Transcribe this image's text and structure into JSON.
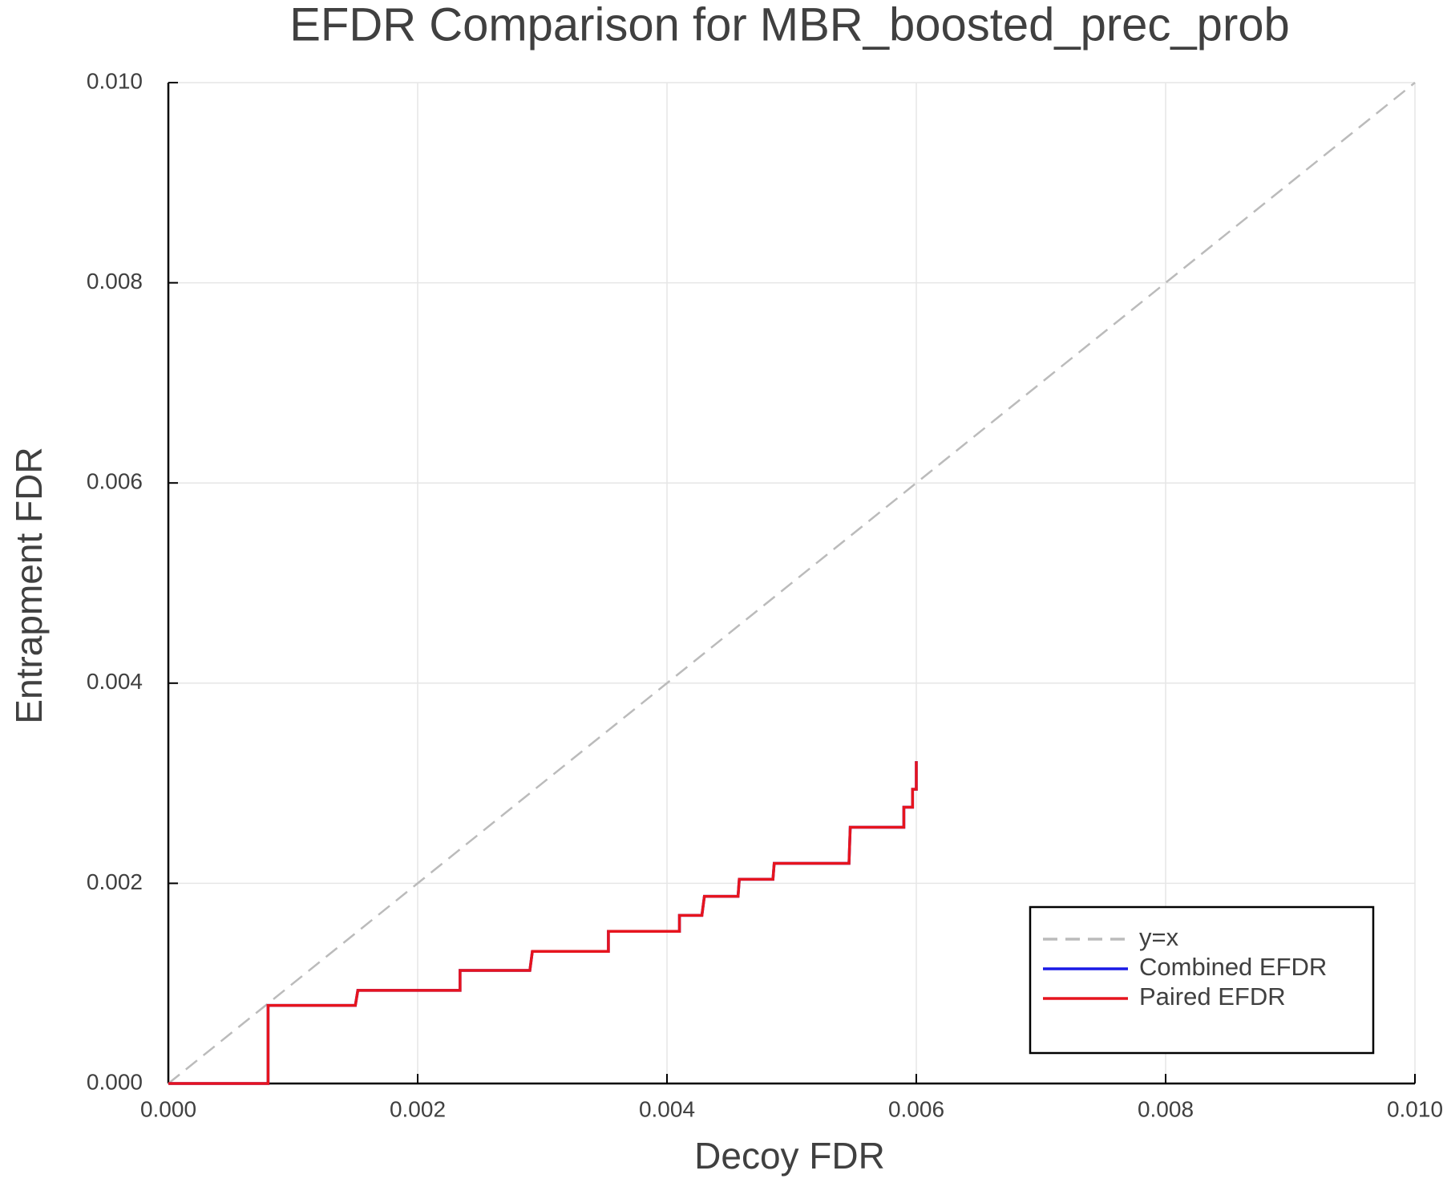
{
  "chart_data": {
    "type": "line",
    "title": "EFDR Comparison for MBR_boosted_prec_prob",
    "xlabel": "Decoy FDR",
    "ylabel": "Entrapment FDR",
    "xlim": [
      0,
      0.01
    ],
    "ylim": [
      0,
      0.01
    ],
    "xticks": [
      {
        "value": 0,
        "label": "0.000"
      },
      0.002,
      0.004,
      0.006,
      0.008,
      {
        "value": 0.01,
        "label": "0.010"
      }
    ],
    "yticks": [
      {
        "value": 0,
        "label": "0.000"
      },
      0.002,
      0.004,
      0.006,
      0.008,
      {
        "value": 0.01,
        "label": "0.010"
      }
    ],
    "grid": true,
    "legend": "lower right",
    "series": [
      {
        "name": "y=x",
        "color": "#bbbbbb",
        "dashed": true,
        "x": [
          0,
          0.01
        ],
        "values": [
          0,
          0.01
        ]
      },
      {
        "name": "Combined EFDR",
        "color": "#1a1ae6",
        "x": [
          0,
          0.0008,
          0.0008,
          0.0015,
          0.00152,
          0.00234,
          0.00234,
          0.0029,
          0.00292,
          0.00353,
          0.00353,
          0.0041,
          0.0041,
          0.00428,
          0.0043,
          0.00457,
          0.00458,
          0.00485,
          0.00486,
          0.00546,
          0.00547,
          0.0059,
          0.0059,
          0.00597,
          0.00597,
          0.006,
          0.006
        ],
        "values": [
          0,
          0,
          0.00078,
          0.00078,
          0.00093,
          0.00093,
          0.00113,
          0.00113,
          0.00132,
          0.00132,
          0.00152,
          0.00152,
          0.00168,
          0.00168,
          0.00187,
          0.00187,
          0.00204,
          0.00204,
          0.0022,
          0.0022,
          0.00256,
          0.00256,
          0.00276,
          0.00276,
          0.00294,
          0.00294,
          0.00322
        ]
      },
      {
        "name": "Paired EFDR",
        "color": "#e6141e",
        "x": [
          0,
          0.0008,
          0.0008,
          0.0015,
          0.00152,
          0.00234,
          0.00234,
          0.0029,
          0.00292,
          0.00353,
          0.00353,
          0.0041,
          0.0041,
          0.00428,
          0.0043,
          0.00457,
          0.00458,
          0.00485,
          0.00486,
          0.00546,
          0.00547,
          0.0059,
          0.0059,
          0.00597,
          0.00597,
          0.006,
          0.006
        ],
        "values": [
          0,
          0,
          0.00078,
          0.00078,
          0.00093,
          0.00093,
          0.00113,
          0.00113,
          0.00132,
          0.00132,
          0.00152,
          0.00152,
          0.00168,
          0.00168,
          0.00187,
          0.00187,
          0.00204,
          0.00204,
          0.0022,
          0.0022,
          0.00256,
          0.00256,
          0.00276,
          0.00276,
          0.00294,
          0.00294,
          0.00322
        ]
      }
    ]
  }
}
